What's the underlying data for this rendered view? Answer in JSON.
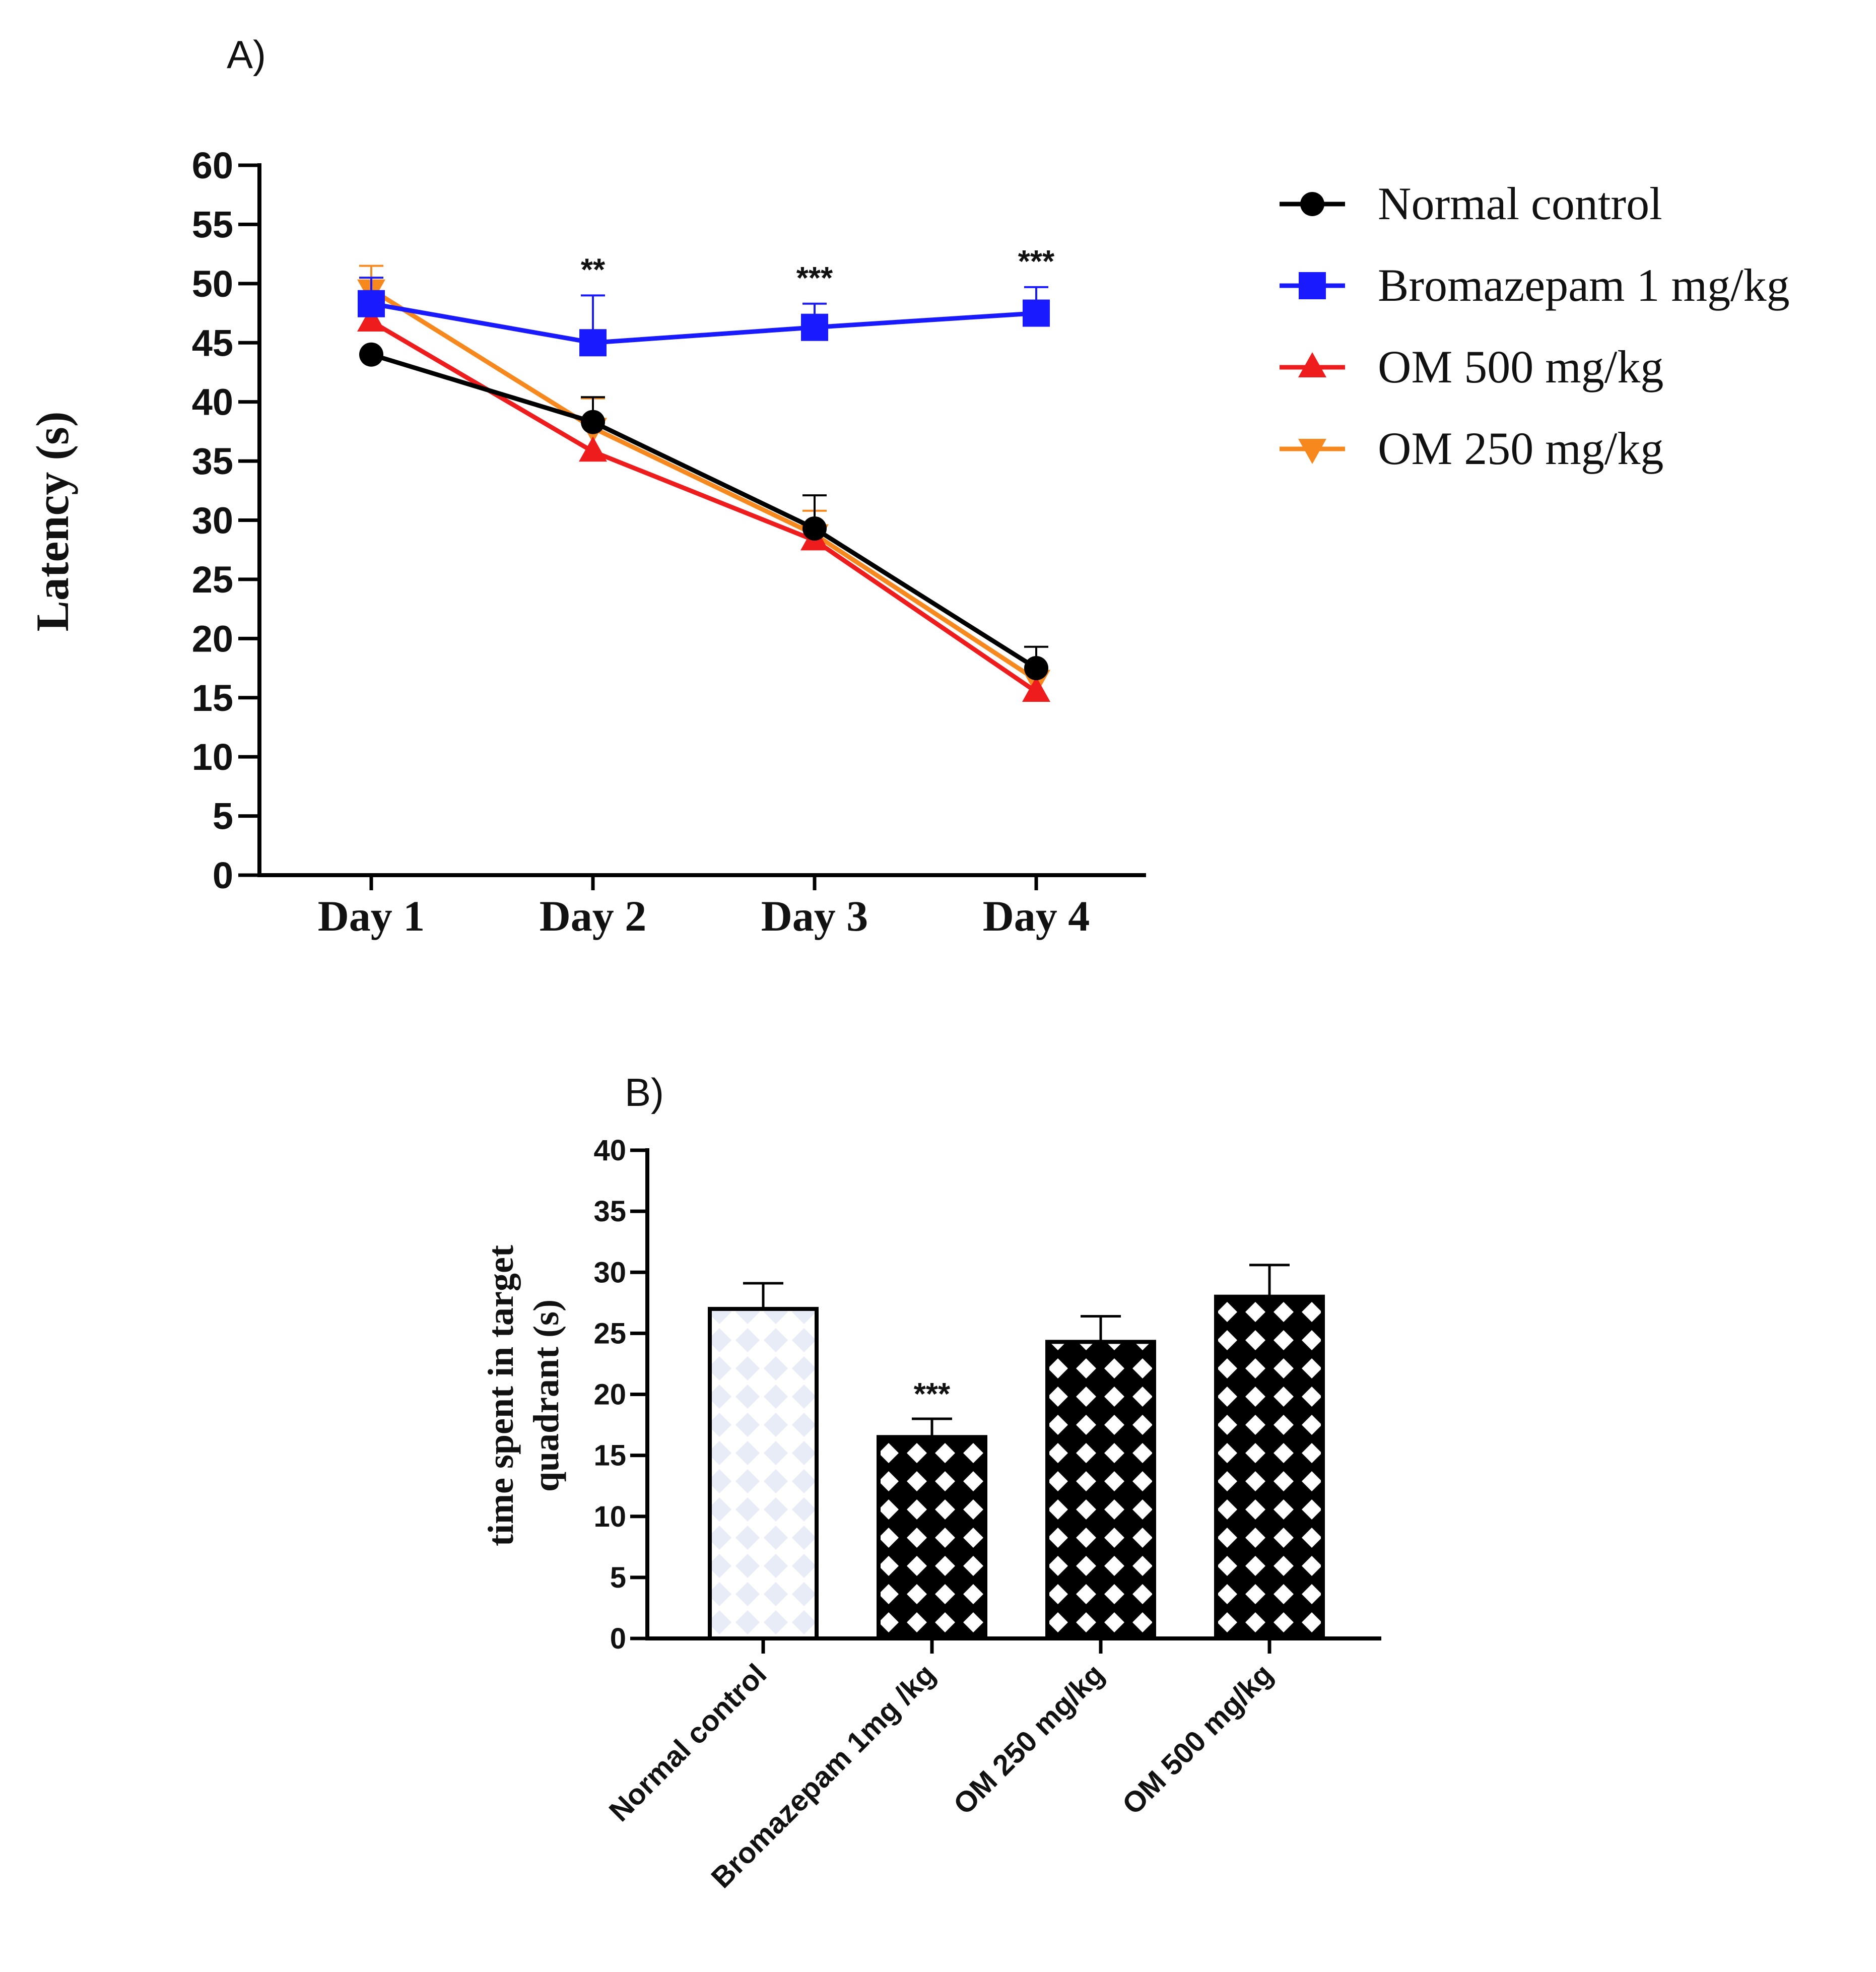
{
  "chart_data": [
    {
      "panel_label": "A)",
      "type": "line",
      "title": "",
      "xlabel": "",
      "ylabel": "Latency (s)",
      "categories": [
        "Day 1",
        "Day 2",
        "Day 3",
        "Day 4"
      ],
      "ylim": [
        0,
        60
      ],
      "yticks": [
        0,
        5,
        10,
        15,
        20,
        25,
        30,
        35,
        40,
        45,
        50,
        55,
        60
      ],
      "grid": false,
      "legend_position": "right",
      "series": [
        {
          "name": "Normal control",
          "color": "#000000",
          "marker": "circle",
          "values": [
            44.0,
            38.3,
            29.3,
            17.5
          ],
          "errors": [
            0,
            2.1,
            2.8,
            1.8
          ]
        },
        {
          "name": "Bromazepam 1 mg/kg",
          "color": "#1a1aff",
          "marker": "square",
          "values": [
            48.3,
            45.0,
            46.3,
            47.5
          ],
          "errors": [
            2.2,
            4.0,
            2.0,
            2.2
          ]
        },
        {
          "name": "OM 500 mg/kg",
          "color": "#ee1c1c",
          "marker": "triangle-up",
          "values": [
            46.8,
            35.8,
            28.3,
            15.5
          ],
          "errors": [
            2.5,
            0,
            0,
            0
          ]
        },
        {
          "name": "OM 250 mg/kg",
          "color": "#f7881e",
          "marker": "triangle-down",
          "values": [
            49.5,
            37.8,
            28.8,
            16.5
          ],
          "errors": [
            2.0,
            2.5,
            2.0,
            0
          ]
        }
      ],
      "annotations": [
        {
          "category": "Day 2",
          "text": "**"
        },
        {
          "category": "Day 3",
          "text": "***"
        },
        {
          "category": "Day 4",
          "text": "***"
        }
      ]
    },
    {
      "panel_label": "B)",
      "type": "bar",
      "title": "",
      "xlabel": "",
      "ylabel_lines": [
        "time spent in target",
        "quadrant (s)"
      ],
      "categories": [
        "Normal control",
        "Bromazepam 1mg /kg",
        "OM 250 mg/kg",
        "OM 500 mg/kg"
      ],
      "values": [
        27.0,
        16.5,
        24.3,
        28.0
      ],
      "errors": [
        2.1,
        1.5,
        2.1,
        2.6
      ],
      "patterns": [
        "light-diamond",
        "dark-diamond",
        "dark-diamond",
        "dark-diamond"
      ],
      "ylim": [
        0,
        40
      ],
      "yticks": [
        0,
        5,
        10,
        15,
        20,
        25,
        30,
        35,
        40
      ],
      "grid": false,
      "annotations": [
        {
          "category": "Bromazepam 1mg /kg",
          "text": "***"
        }
      ]
    }
  ]
}
